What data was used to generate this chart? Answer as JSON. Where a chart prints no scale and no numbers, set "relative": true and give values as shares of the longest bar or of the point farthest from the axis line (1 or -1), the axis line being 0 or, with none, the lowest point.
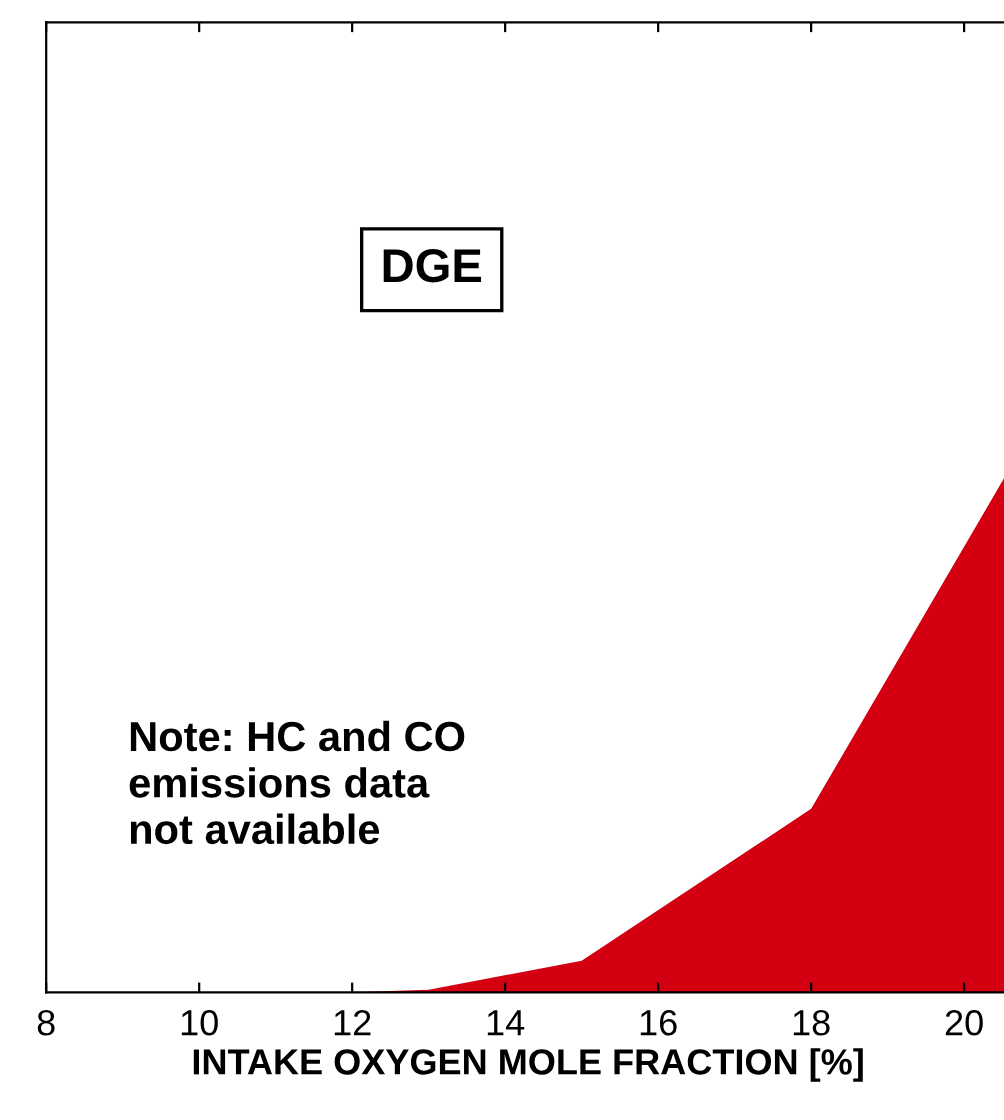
{
  "chart_data": {
    "type": "area",
    "relative": true,
    "x": [
      8,
      12,
      13,
      15,
      18,
      20.6
    ],
    "series": [
      {
        "color": "#d40011",
        "values": [
          0,
          0,
          0.005,
          0.06,
          0.35,
          1
        ]
      }
    ],
    "xlim": [
      8,
      20.6
    ],
    "xticks": [
      8,
      10,
      12,
      14,
      16,
      18,
      20
    ],
    "xlabel": "INTAKE OXYGEN MOLE FRACTION [%]",
    "annotations": [
      "DGE",
      "Note: HC and CO\nemissions data\nnot available"
    ],
    "grid": false,
    "legend": false
  }
}
